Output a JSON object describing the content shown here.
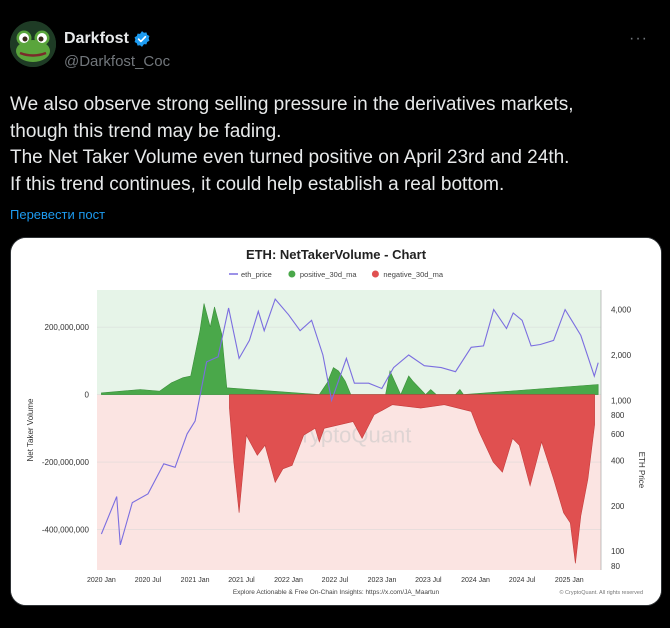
{
  "author": {
    "display_name": "Darkfost",
    "handle": "@Darkfost_Coc",
    "verified": true,
    "avatar_icon": "frog-avatar-icon"
  },
  "more_menu_label": "···",
  "tweet": {
    "lines": [
      "We also observe strong selling pressure in the derivatives markets,",
      "though this trend may be fading.",
      "The Net Taker Volume even turned positive on April 23rd and 24th.",
      "If this trend continues, it could help establish a real bottom."
    ],
    "translate_label": "Перевести пост"
  },
  "colors": {
    "background": "#000000",
    "text": "#e7e9ea",
    "secondary_text": "#71767b",
    "link": "#1d9bf0",
    "verified": "#1d9bf0",
    "positive": "#4aa84a",
    "negative": "#e05050",
    "price_line": "#7b6ee0"
  },
  "chart_data": {
    "type": "area",
    "title": "ETH: NetTakerVolume - Chart",
    "legend": [
      "eth_price",
      "positive_30d_ma",
      "negative_30d_ma"
    ],
    "legend_position": "top",
    "ylabel_left": "Net Taker Volume",
    "ylabel_right": "ETH Price",
    "watermark": "CryptoQuant",
    "footer_left": "Explore Actionable & Free On-Chain Insights: https://x.com/JA_Maartun",
    "footer_right": "© CryptoQuant. All rights reserved",
    "x_ticks": [
      "2020 Jan",
      "2020 Jul",
      "2021 Jan",
      "2021 Jul",
      "2022 Jan",
      "2022 Jul",
      "2023 Jan",
      "2023 Jul",
      "2024 Jan",
      "2024 Jul",
      "2025 Jan"
    ],
    "y_left_ticks": [
      "200,000,000",
      "0",
      "-200,000,000",
      "-400,000,000"
    ],
    "y_left_values": [
      200000000,
      0,
      -200000000,
      -400000000
    ],
    "y_left_range": [
      -520000000,
      310000000
    ],
    "y_right_ticks": [
      "4,000",
      "2,000",
      "1,000",
      "800",
      "600",
      "400",
      "200",
      "100",
      "80"
    ],
    "y_right_values": [
      4000,
      2000,
      1000,
      800,
      600,
      400,
      200,
      100,
      80
    ],
    "y_right_scale": "log",
    "x_range": [
      "2019-12-15",
      "2025-05-05"
    ],
    "series": [
      {
        "name": "eth_price",
        "x": [
          "2020-01-01",
          "2020-03-01",
          "2020-03-15",
          "2020-05-01",
          "2020-07-01",
          "2020-09-01",
          "2020-10-15",
          "2020-12-01",
          "2021-01-01",
          "2021-02-15",
          "2021-04-01",
          "2021-05-12",
          "2021-06-22",
          "2021-08-01",
          "2021-09-05",
          "2021-09-28",
          "2021-11-10",
          "2022-01-01",
          "2022-02-15",
          "2022-04-01",
          "2022-05-15",
          "2022-06-18",
          "2022-08-15",
          "2022-09-15",
          "2022-11-10",
          "2022-12-31",
          "2023-02-15",
          "2023-04-15",
          "2023-06-15",
          "2023-08-20",
          "2023-10-15",
          "2023-12-15",
          "2024-02-01",
          "2024-03-12",
          "2024-05-01",
          "2024-05-27",
          "2024-07-01",
          "2024-08-05",
          "2024-09-10",
          "2024-11-01",
          "2024-12-16",
          "2025-01-15",
          "2025-02-15",
          "2025-03-15",
          "2025-04-09",
          "2025-04-24"
        ],
        "values": [
          130,
          230,
          110,
          210,
          240,
          380,
          360,
          600,
          730,
          1800,
          1950,
          4100,
          1900,
          2500,
          3900,
          2900,
          4700,
          3700,
          2900,
          3400,
          2000,
          1000,
          1900,
          1300,
          1300,
          1200,
          1650,
          2000,
          1700,
          1650,
          1550,
          2250,
          2300,
          4000,
          3000,
          3800,
          3400,
          2300,
          2350,
          2500,
          4000,
          3300,
          2700,
          1950,
          1450,
          1780
        ]
      },
      {
        "name": "positive_30d_ma",
        "x": [
          "2020-01-01",
          "2020-06-01",
          "2020-08-15",
          "2020-10-01",
          "2020-11-15",
          "2020-12-15",
          "2021-01-20",
          "2021-02-05",
          "2021-03-01",
          "2021-03-18",
          "2021-04-15",
          "2021-05-05",
          "2022-05-01",
          "2022-06-01",
          "2022-06-25",
          "2022-07-15",
          "2022-08-10",
          "2022-09-01",
          "2023-01-15",
          "2023-02-01",
          "2023-03-15",
          "2023-04-15",
          "2023-05-01",
          "2023-06-20",
          "2023-07-10",
          "2023-08-01",
          "2023-10-15",
          "2023-11-01",
          "2023-11-15",
          "2025-04-23",
          "2025-04-24"
        ],
        "values": [
          5000000,
          15000000,
          10000000,
          35000000,
          50000000,
          55000000,
          190000000,
          270000000,
          200000000,
          260000000,
          180000000,
          20000000,
          0,
          35000000,
          80000000,
          70000000,
          40000000,
          0,
          0,
          70000000,
          0,
          55000000,
          40000000,
          0,
          15000000,
          0,
          0,
          15000000,
          0,
          30000000,
          30000000
        ]
      },
      {
        "name": "negative_30d_ma",
        "x": [
          "2021-05-15",
          "2021-06-01",
          "2021-06-22",
          "2021-07-20",
          "2021-09-01",
          "2021-10-01",
          "2021-11-10",
          "2021-12-10",
          "2022-01-15",
          "2022-03-01",
          "2022-04-15",
          "2022-05-01",
          "2022-05-20",
          "2022-09-10",
          "2022-10-15",
          "2022-12-01",
          "2023-02-10",
          "2023-06-01",
          "2023-09-01",
          "2023-12-15",
          "2024-01-15",
          "2024-03-10",
          "2024-04-15",
          "2024-05-25",
          "2024-06-20",
          "2024-08-01",
          "2024-09-15",
          "2024-11-01",
          "2024-12-10",
          "2025-01-05",
          "2025-01-25",
          "2025-02-15",
          "2025-03-15",
          "2025-04-10"
        ],
        "values": [
          -40000000,
          -200000000,
          -350000000,
          -120000000,
          -180000000,
          -150000000,
          -260000000,
          -220000000,
          -210000000,
          -120000000,
          -100000000,
          -140000000,
          -100000000,
          -80000000,
          -130000000,
          -60000000,
          -30000000,
          -40000000,
          -30000000,
          -50000000,
          -110000000,
          -200000000,
          -230000000,
          -130000000,
          -150000000,
          -270000000,
          -140000000,
          -250000000,
          -350000000,
          -380000000,
          -500000000,
          -360000000,
          -250000000,
          -90000000
        ]
      }
    ]
  }
}
